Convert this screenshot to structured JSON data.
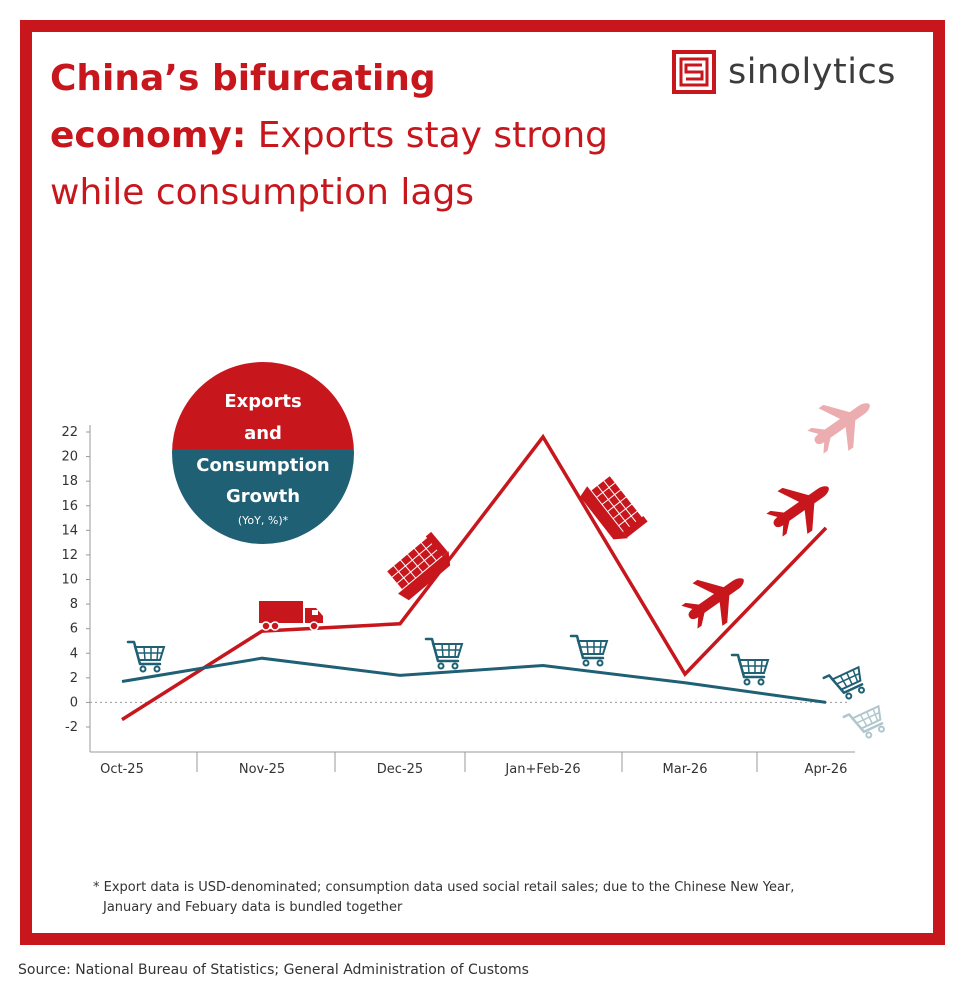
{
  "title": {
    "bold": "China’s bifurcating economy:",
    "rest": "Exports stay strong while consumption lags"
  },
  "logo": {
    "text": "sinolytics"
  },
  "badge": {
    "line1": "Exports",
    "line2": "and",
    "line3": "Consumption",
    "line4": "Growth",
    "line5": "(YoY, %)*"
  },
  "footnote": {
    "line1": "* Export data is USD-denominated; consumption data used social retail sales; due to the Chinese New Year,",
    "line2": "January and Febuary data is bundled together"
  },
  "source": "Source: National Bureau of Statistics; General Administration of Customs",
  "colors": {
    "exports": "#c8161d",
    "consumption": "#1f6075",
    "frame": "#c8161d"
  },
  "chart_data": {
    "type": "line",
    "categories": [
      "Oct-25",
      "Nov-25",
      "Dec-25",
      "Jan+Feb-26",
      "Mar-26",
      "Apr-26"
    ],
    "series": [
      {
        "key": "exports",
        "values": [
          -1.4,
          5.8,
          6.4,
          21.6,
          2.3,
          14.2
        ],
        "icon": "truck-ship-plane-icons"
      },
      {
        "key": "consumption",
        "values": [
          1.7,
          3.6,
          2.2,
          3.0,
          1.6,
          0.0
        ],
        "icon": "shopping-cart-icons"
      }
    ],
    "ylim": [
      -4,
      22
    ],
    "yticks": [
      -2,
      0,
      2,
      4,
      6,
      8,
      10,
      12,
      14,
      16,
      18,
      20,
      22
    ],
    "zero_line": "dotted",
    "grid": false
  }
}
